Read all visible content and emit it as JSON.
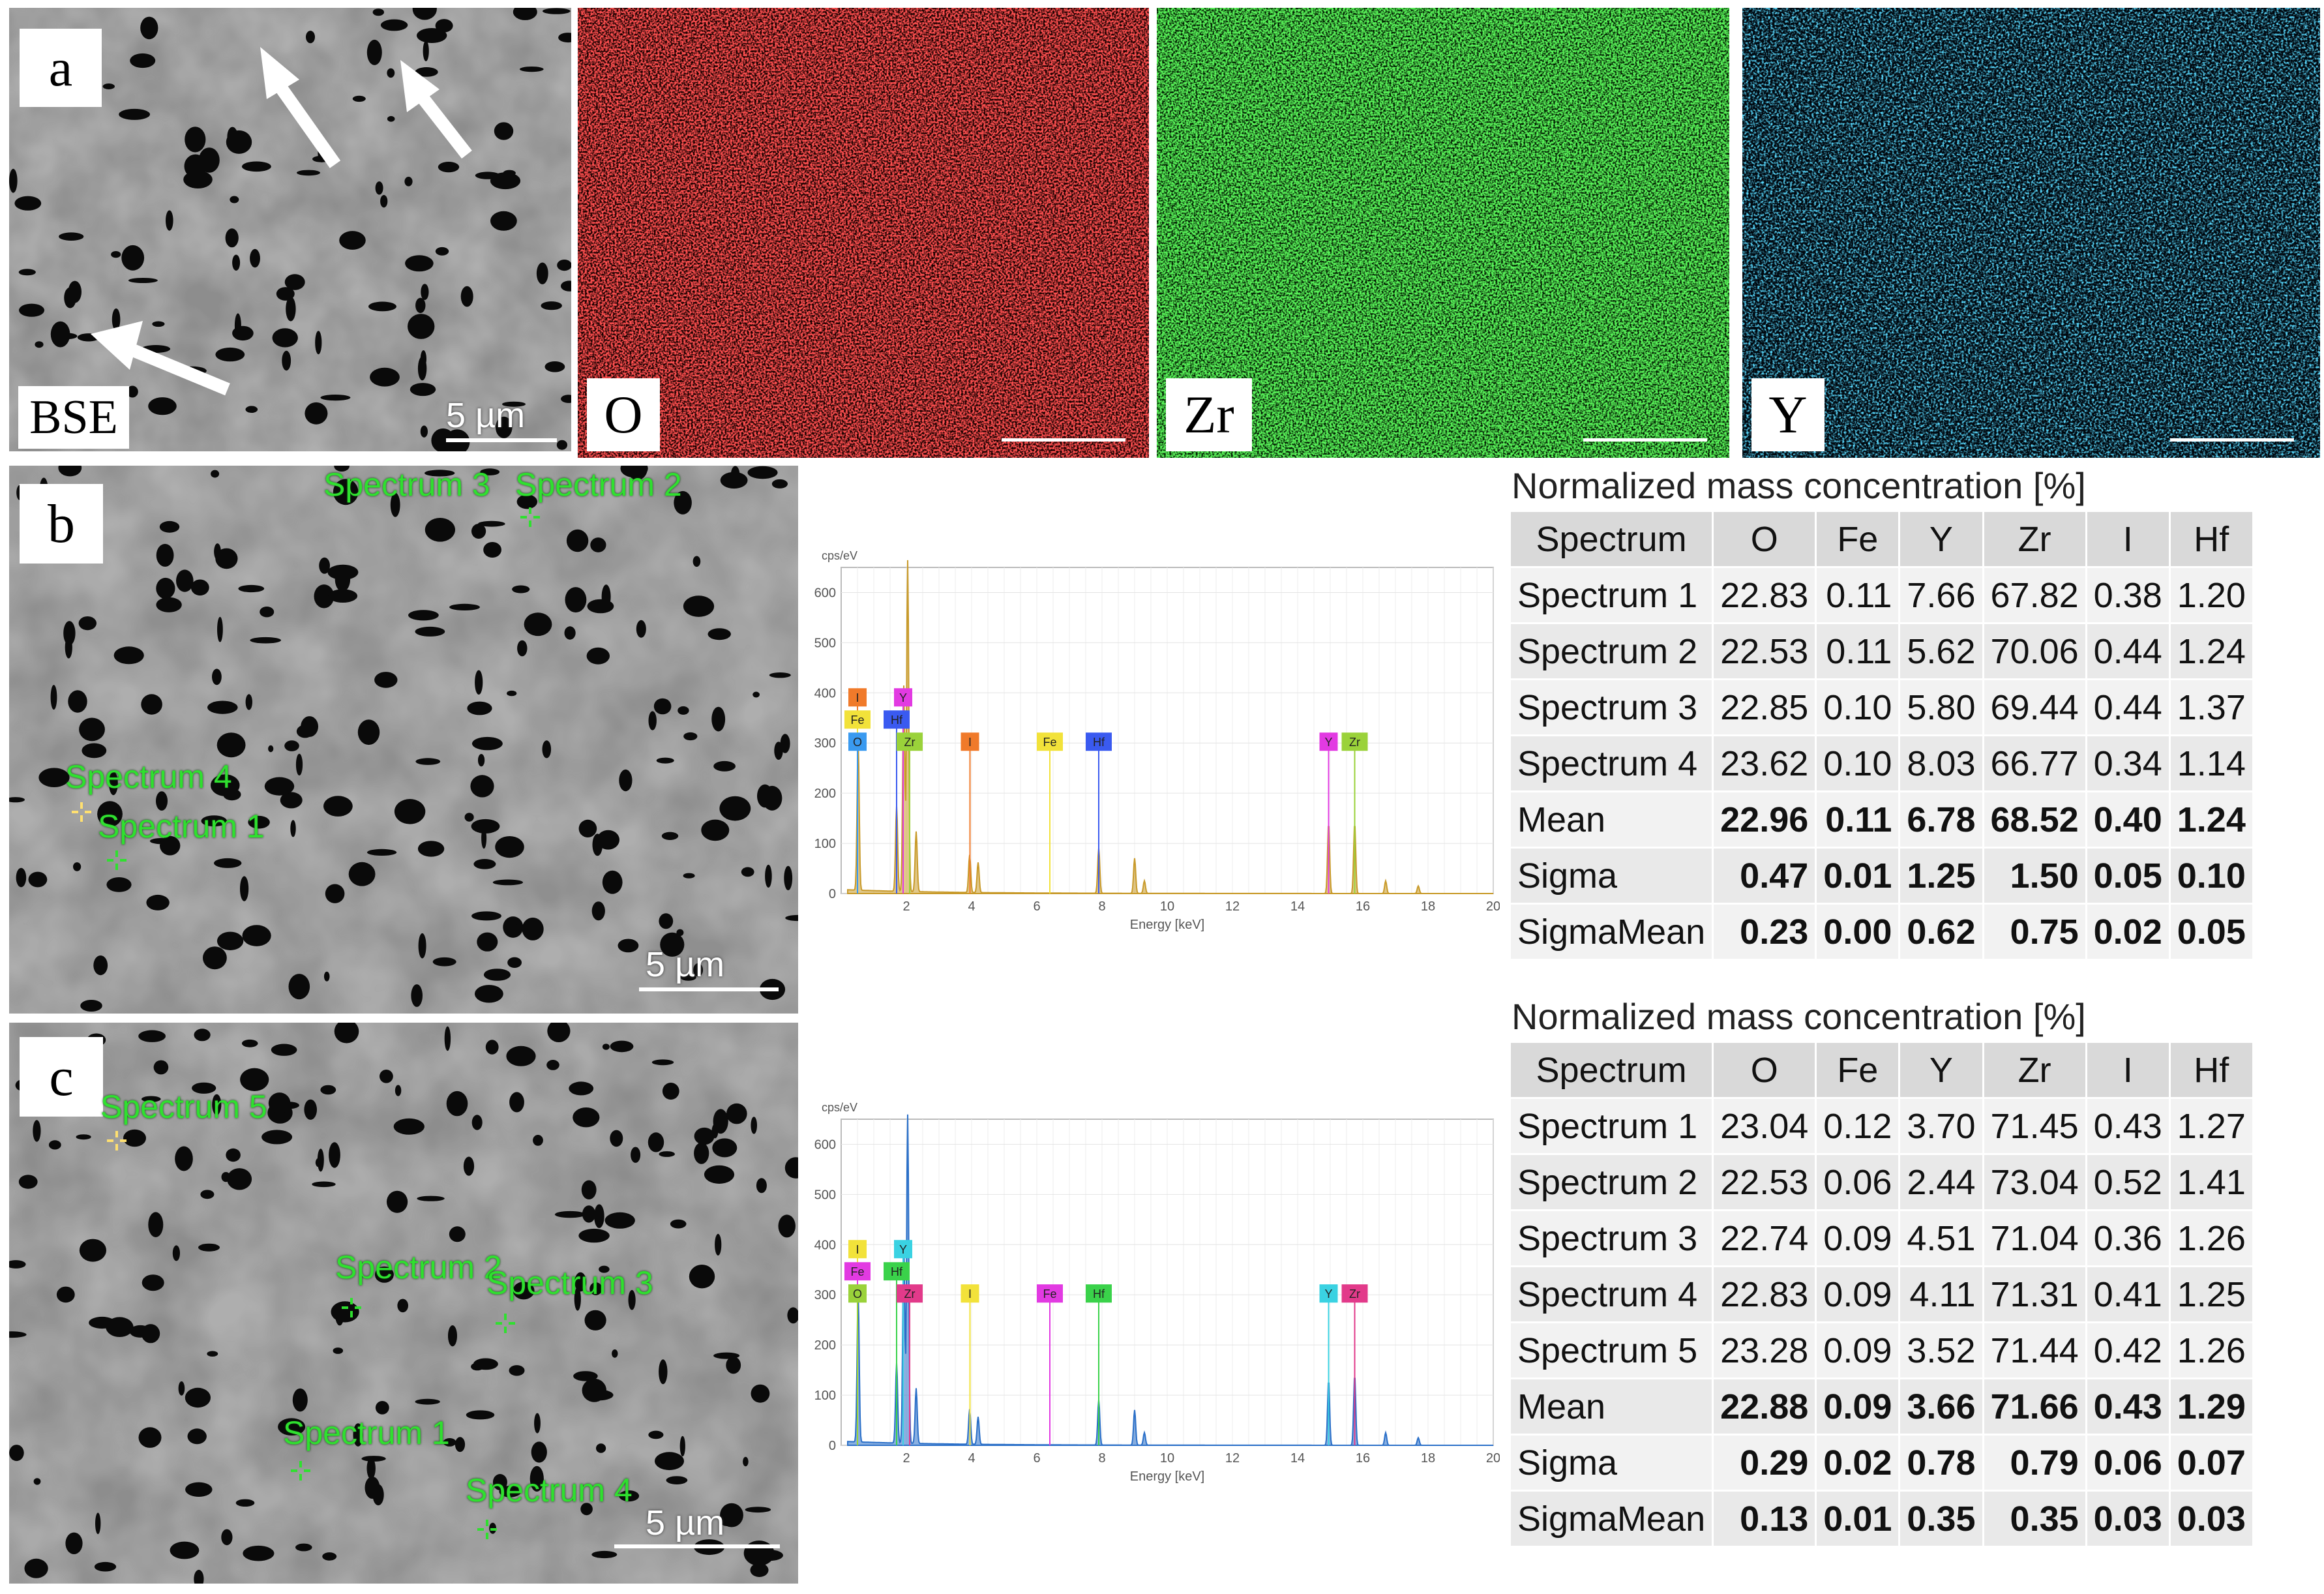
{
  "panels": {
    "a": {
      "letter": "a",
      "bse_label": "BSE",
      "scale": "5 µm"
    },
    "maps": [
      {
        "label": "O",
        "color": "#ff1a1a"
      },
      {
        "label": "Zr",
        "color": "#22dd22"
      },
      {
        "label": "Y",
        "color": "#1ab2ff"
      }
    ],
    "b": {
      "letter": "b",
      "scale": "5 µm",
      "spectra": [
        "Spectrum 3",
        "Spectrum 2",
        "Spectrum 4",
        "Spectrum 1"
      ]
    },
    "c": {
      "letter": "c",
      "scale": "5 µm",
      "spectra": [
        "Spectrum 5",
        "Spectrum 2",
        "Spectrum 3",
        "Spectrum 1",
        "Spectrum 4"
      ]
    }
  },
  "chart_data": [
    {
      "type": "line",
      "ylabel": "cps/eV",
      "xlabel": "Energy [keV]",
      "xlim": [
        0,
        20
      ],
      "ylim": [
        0,
        650
      ],
      "xticks": [
        2,
        4,
        6,
        8,
        10,
        12,
        14,
        16,
        18,
        20
      ],
      "yticks": [
        0,
        100,
        200,
        300,
        400,
        500,
        600
      ],
      "color": "#c89a2a",
      "peaks": [
        {
          "x": 0.52,
          "y": 300
        },
        {
          "x": 1.7,
          "y": 170
        },
        {
          "x": 1.92,
          "y": 410
        },
        {
          "x": 2.04,
          "y": 660
        },
        {
          "x": 2.3,
          "y": 120
        },
        {
          "x": 3.94,
          "y": 75
        },
        {
          "x": 4.2,
          "y": 60
        },
        {
          "x": 7.9,
          "y": 90
        },
        {
          "x": 9.0,
          "y": 70
        },
        {
          "x": 9.3,
          "y": 25
        },
        {
          "x": 14.95,
          "y": 140
        },
        {
          "x": 15.75,
          "y": 140
        },
        {
          "x": 16.7,
          "y": 25
        },
        {
          "x": 17.7,
          "y": 15
        }
      ],
      "element_tags": [
        {
          "label": "I",
          "x": 0.5,
          "row": 3,
          "color": "#f07a2a"
        },
        {
          "label": "Fe",
          "x": 0.5,
          "row": 2,
          "color": "#f2e23a"
        },
        {
          "label": "O",
          "x": 0.5,
          "row": 1,
          "color": "#3a9af0"
        },
        {
          "label": "Y",
          "x": 1.9,
          "row": 3,
          "color": "#e23ae2"
        },
        {
          "label": "Hf",
          "x": 1.7,
          "row": 2,
          "color": "#3a5af0"
        },
        {
          "label": "Zr",
          "x": 2.1,
          "row": 1,
          "color": "#9ad23a"
        },
        {
          "label": "I",
          "x": 3.95,
          "row": 1,
          "color": "#f07a2a"
        },
        {
          "label": "Fe",
          "x": 6.4,
          "row": 1,
          "color": "#f2e23a"
        },
        {
          "label": "Hf",
          "x": 7.9,
          "row": 1,
          "color": "#3a5af0"
        },
        {
          "label": "Y",
          "x": 14.95,
          "row": 1,
          "color": "#e23ae2"
        },
        {
          "label": "Zr",
          "x": 15.75,
          "row": 1,
          "color": "#9ad23a"
        }
      ]
    },
    {
      "type": "line",
      "ylabel": "cps/eV",
      "xlabel": "Energy [keV]",
      "xlim": [
        0,
        20
      ],
      "ylim": [
        0,
        650
      ],
      "xticks": [
        2,
        4,
        6,
        8,
        10,
        12,
        14,
        16,
        18,
        20
      ],
      "yticks": [
        0,
        100,
        200,
        300,
        400,
        500,
        600
      ],
      "color": "#2a6fc8",
      "peaks": [
        {
          "x": 0.52,
          "y": 300
        },
        {
          "x": 1.7,
          "y": 160
        },
        {
          "x": 1.92,
          "y": 400
        },
        {
          "x": 2.04,
          "y": 655
        },
        {
          "x": 2.3,
          "y": 110
        },
        {
          "x": 3.94,
          "y": 70
        },
        {
          "x": 4.2,
          "y": 55
        },
        {
          "x": 7.9,
          "y": 90
        },
        {
          "x": 9.0,
          "y": 70
        },
        {
          "x": 9.3,
          "y": 25
        },
        {
          "x": 14.95,
          "y": 130
        },
        {
          "x": 15.75,
          "y": 140
        },
        {
          "x": 16.7,
          "y": 25
        },
        {
          "x": 17.7,
          "y": 15
        }
      ],
      "element_tags": [
        {
          "label": "I",
          "x": 0.5,
          "row": 3,
          "color": "#f2e23a"
        },
        {
          "label": "Fe",
          "x": 0.5,
          "row": 2,
          "color": "#e23ae2"
        },
        {
          "label": "O",
          "x": 0.5,
          "row": 1,
          "color": "#9ad23a"
        },
        {
          "label": "Y",
          "x": 1.9,
          "row": 3,
          "color": "#3ad2e2"
        },
        {
          "label": "Hf",
          "x": 1.7,
          "row": 2,
          "color": "#3ad24a"
        },
        {
          "label": "Zr",
          "x": 2.1,
          "row": 1,
          "color": "#e23a8a"
        },
        {
          "label": "I",
          "x": 3.95,
          "row": 1,
          "color": "#f2e23a"
        },
        {
          "label": "Fe",
          "x": 6.4,
          "row": 1,
          "color": "#e23ae2"
        },
        {
          "label": "Hf",
          "x": 7.9,
          "row": 1,
          "color": "#3ad24a"
        },
        {
          "label": "Y",
          "x": 14.95,
          "row": 1,
          "color": "#3ad2e2"
        },
        {
          "label": "Zr",
          "x": 15.75,
          "row": 1,
          "color": "#e23a8a"
        }
      ]
    },
    {
      "type": "table",
      "title": "Normalized mass concentration [%]",
      "columns": [
        "Spectrum",
        "O",
        "Fe",
        "Y",
        "Zr",
        "I",
        "Hf"
      ],
      "rows": [
        [
          "Spectrum 1",
          "22.83",
          "0.11",
          "7.66",
          "67.82",
          "0.38",
          "1.20"
        ],
        [
          "Spectrum 2",
          "22.53",
          "0.11",
          "5.62",
          "70.06",
          "0.44",
          "1.24"
        ],
        [
          "Spectrum 3",
          "22.85",
          "0.10",
          "5.80",
          "69.44",
          "0.44",
          "1.37"
        ],
        [
          "Spectrum 4",
          "23.62",
          "0.10",
          "8.03",
          "66.77",
          "0.34",
          "1.14"
        ],
        [
          "Mean",
          "22.96",
          "0.11",
          "6.78",
          "68.52",
          "0.40",
          "1.24"
        ],
        [
          "Sigma",
          "0.47",
          "0.01",
          "1.25",
          "1.50",
          "0.05",
          "0.10"
        ],
        [
          "SigmaMean",
          "0.23",
          "0.00",
          "0.62",
          "0.75",
          "0.02",
          "0.05"
        ]
      ]
    },
    {
      "type": "table",
      "title": "Normalized mass concentration [%]",
      "columns": [
        "Spectrum",
        "O",
        "Fe",
        "Y",
        "Zr",
        "I",
        "Hf"
      ],
      "rows": [
        [
          "Spectrum 1",
          "23.04",
          "0.12",
          "3.70",
          "71.45",
          "0.43",
          "1.27"
        ],
        [
          "Spectrum 2",
          "22.53",
          "0.06",
          "2.44",
          "73.04",
          "0.52",
          "1.41"
        ],
        [
          "Spectrum 3",
          "22.74",
          "0.09",
          "4.51",
          "71.04",
          "0.36",
          "1.26"
        ],
        [
          "Spectrum 4",
          "22.83",
          "0.09",
          "4.11",
          "71.31",
          "0.41",
          "1.25"
        ],
        [
          "Spectrum 5",
          "23.28",
          "0.09",
          "3.52",
          "71.44",
          "0.42",
          "1.26"
        ],
        [
          "Mean",
          "22.88",
          "0.09",
          "3.66",
          "71.66",
          "0.43",
          "1.29"
        ],
        [
          "Sigma",
          "0.29",
          "0.02",
          "0.78",
          "0.79",
          "0.06",
          "0.07"
        ],
        [
          "SigmaMean",
          "0.13",
          "0.01",
          "0.35",
          "0.35",
          "0.03",
          "0.03"
        ]
      ]
    }
  ]
}
